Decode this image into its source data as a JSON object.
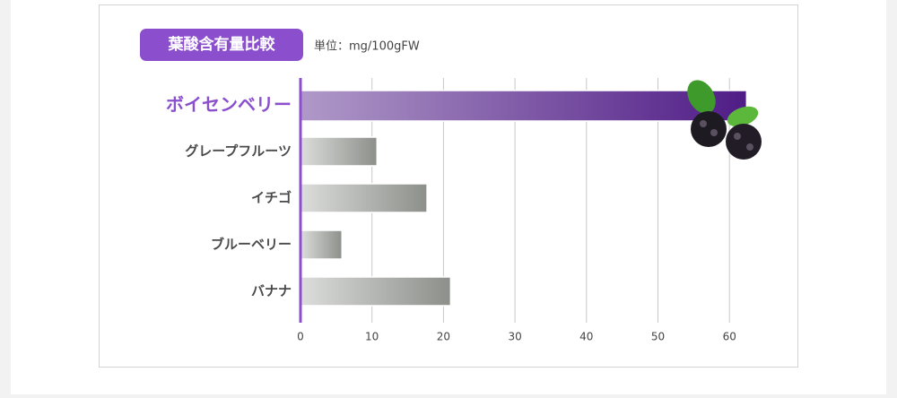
{
  "chart_data": {
    "type": "bar",
    "orientation": "horizontal",
    "title": "葉酸含有量比較",
    "unit_label": "単位：mg/100gFW",
    "categories": [
      "ボイセンベリー",
      "グレープフルーツ",
      "イチゴ",
      "ブルーベリー",
      "バナナ"
    ],
    "values": [
      62.4,
      10.7,
      17.7,
      5.8,
      21.0
    ],
    "colors": [
      "#4f1c86",
      "#8c8f8a",
      "#8c8f8a",
      "#8c8f8a",
      "#8c8f8a"
    ],
    "xlim": [
      0,
      67
    ],
    "xticks": [
      0,
      10,
      20,
      30,
      40,
      50,
      60
    ],
    "grid": true
  }
}
